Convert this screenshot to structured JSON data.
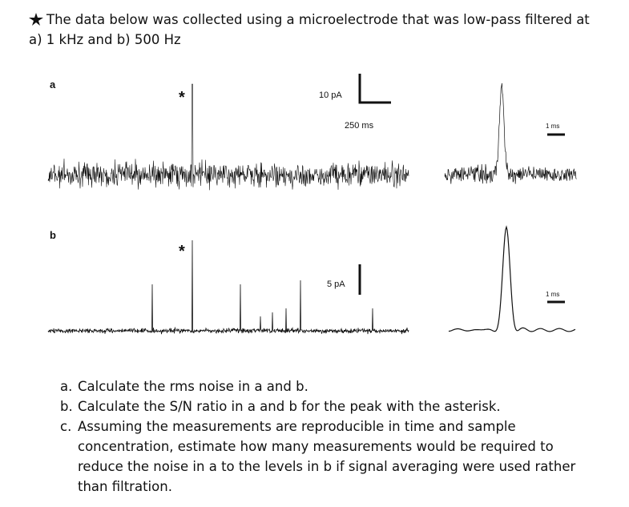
{
  "intro": {
    "text": "The data below was collected using a microelectrode that was low-pass filtered at a) 1 kHz and b) 500 Hz"
  },
  "figure": {
    "panels": [
      {
        "label": "a",
        "asterisk": "*",
        "amplitude_scale": "10 pA",
        "time_scale": "250 ms",
        "zoom_scale": "1 ms"
      },
      {
        "label": "b",
        "asterisk": "*",
        "amplitude_scale": "5 pA",
        "zoom_scale": "1 ms"
      }
    ]
  },
  "questions": [
    {
      "marker": "a.",
      "text": "Calculate the rms noise in a and b."
    },
    {
      "marker": "b.",
      "text": "Calculate the S/N ratio in a and b for the peak with the asterisk."
    },
    {
      "marker": "c.",
      "text": "Assuming the measurements are reproducible in time and sample concentration, estimate how many measurements would be required to reduce the noise in a to the levels in b if signal averaging were used rather than filtration."
    }
  ]
}
